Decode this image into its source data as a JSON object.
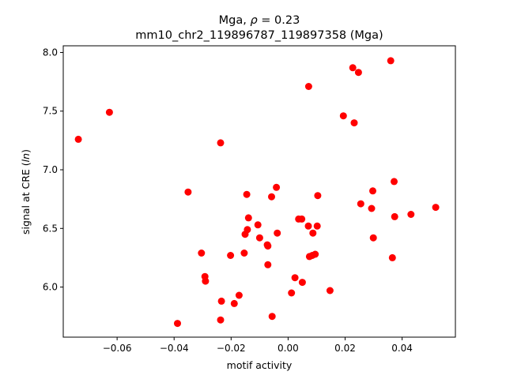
{
  "chart_data": {
    "type": "scatter",
    "title_line1_prefix": "Mga, ",
    "title_line1_rho": "ρ",
    "title_line1_suffix": " = 0.23",
    "title_line2": "mm10_chr2_119896787_119897358 (Mga)",
    "xlabel": "motif activity",
    "ylabel_prefix": "signal at CRE (",
    "ylabel_italic": "ln",
    "ylabel_suffix": ")",
    "xlim": [
      -0.0789,
      0.0587
    ],
    "ylim": [
      5.573,
      8.057
    ],
    "xticks": [
      -0.06,
      -0.04,
      -0.02,
      0.0,
      0.02,
      0.04
    ],
    "xtick_labels": [
      "−0.06",
      "−0.04",
      "−0.02",
      "0.00",
      "0.02",
      "0.04"
    ],
    "yticks": [
      6.0,
      6.5,
      7.0,
      7.5,
      8.0
    ],
    "ytick_labels": [
      "6.0",
      "6.5",
      "7.0",
      "7.5",
      "8.0"
    ],
    "grid": false,
    "marker_color": "#ff0000",
    "points": [
      {
        "x": -0.0736,
        "y": 7.26
      },
      {
        "x": -0.0627,
        "y": 7.49
      },
      {
        "x": -0.0351,
        "y": 6.81
      },
      {
        "x": -0.0388,
        "y": 5.69
      },
      {
        "x": -0.0304,
        "y": 6.29
      },
      {
        "x": -0.0292,
        "y": 6.09
      },
      {
        "x": -0.029,
        "y": 6.05
      },
      {
        "x": -0.0237,
        "y": 7.23
      },
      {
        "x": -0.0234,
        "y": 5.88
      },
      {
        "x": -0.0237,
        "y": 5.72
      },
      {
        "x": -0.0202,
        "y": 6.27
      },
      {
        "x": -0.0189,
        "y": 5.86
      },
      {
        "x": -0.0172,
        "y": 5.93
      },
      {
        "x": -0.0154,
        "y": 6.29
      },
      {
        "x": -0.0151,
        "y": 6.45
      },
      {
        "x": -0.0145,
        "y": 6.79
      },
      {
        "x": -0.0143,
        "y": 6.49
      },
      {
        "x": -0.0139,
        "y": 6.59
      },
      {
        "x": -0.0106,
        "y": 6.53
      },
      {
        "x": -0.01,
        "y": 6.42
      },
      {
        "x": -0.0073,
        "y": 6.36
      },
      {
        "x": -0.0071,
        "y": 6.35
      },
      {
        "x": -0.0071,
        "y": 6.19
      },
      {
        "x": -0.0058,
        "y": 6.77
      },
      {
        "x": -0.0056,
        "y": 5.75
      },
      {
        "x": -0.0041,
        "y": 6.85
      },
      {
        "x": -0.0038,
        "y": 6.46
      },
      {
        "x": 0.0012,
        "y": 5.95
      },
      {
        "x": 0.0024,
        "y": 6.08
      },
      {
        "x": 0.0037,
        "y": 6.58
      },
      {
        "x": 0.0048,
        "y": 6.58
      },
      {
        "x": 0.005,
        "y": 6.04
      },
      {
        "x": 0.0071,
        "y": 6.52
      },
      {
        "x": 0.0072,
        "y": 7.71
      },
      {
        "x": 0.0075,
        "y": 6.26
      },
      {
        "x": 0.0085,
        "y": 6.27
      },
      {
        "x": 0.0087,
        "y": 6.46
      },
      {
        "x": 0.0095,
        "y": 6.28
      },
      {
        "x": 0.0102,
        "y": 6.52
      },
      {
        "x": 0.0104,
        "y": 6.78
      },
      {
        "x": 0.0147,
        "y": 5.97
      },
      {
        "x": 0.0194,
        "y": 7.46
      },
      {
        "x": 0.0227,
        "y": 7.87
      },
      {
        "x": 0.0232,
        "y": 7.4
      },
      {
        "x": 0.0247,
        "y": 7.83
      },
      {
        "x": 0.0255,
        "y": 6.71
      },
      {
        "x": 0.0293,
        "y": 6.67
      },
      {
        "x": 0.0297,
        "y": 6.82
      },
      {
        "x": 0.0299,
        "y": 6.42
      },
      {
        "x": 0.036,
        "y": 7.93
      },
      {
        "x": 0.0366,
        "y": 6.25
      },
      {
        "x": 0.0372,
        "y": 6.9
      },
      {
        "x": 0.0374,
        "y": 6.6
      },
      {
        "x": 0.0431,
        "y": 6.62
      },
      {
        "x": 0.0518,
        "y": 6.68
      }
    ]
  }
}
